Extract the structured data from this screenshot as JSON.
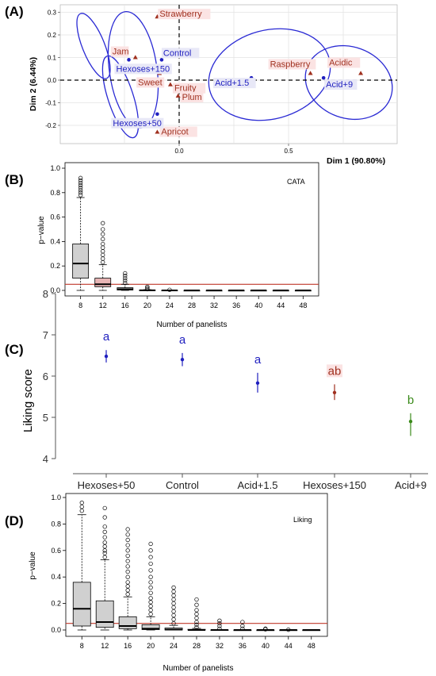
{
  "colors": {
    "variable_red": "#a0301f",
    "individual_blue": "#1f1fbf",
    "ellipse_blue": "#2a2ad4",
    "threshold_red": "#c0392b",
    "box_fill": "#d0d0d0",
    "box_fill_pink": "#e8b5b5",
    "green": "#3a8a1a"
  },
  "chart_data": [
    {
      "id": "A",
      "panel_label": "(A)",
      "type": "scatter",
      "xlabel": "Dim 1 (90.80%)",
      "ylabel": "Dim 2 (6.44%)",
      "xlim": [
        -0.27,
        0.88
      ],
      "ylim": [
        -0.27,
        0.3
      ],
      "xticks": [
        0.0,
        0.5
      ],
      "xtick_labels": [
        "0.0",
        "0.5"
      ],
      "yticks": [
        -0.2,
        -0.1,
        0.0,
        0.1,
        0.2,
        0.3
      ],
      "ytick_labels": [
        "-0.2",
        "-0.1",
        "0.0",
        "0.1",
        "0.2",
        "0.3"
      ],
      "grid": true,
      "variables": [
        {
          "label": "Strawberry",
          "x": -0.1,
          "y": 0.28
        },
        {
          "label": "Jam",
          "x": -0.2,
          "y": 0.1
        },
        {
          "label": "Sweet",
          "x": -0.09,
          "y": 0.03
        },
        {
          "label": "Fruity",
          "x": -0.04,
          "y": -0.02
        },
        {
          "label": "Plum",
          "x": -0.005,
          "y": -0.07
        },
        {
          "label": "Apricot",
          "x": -0.1,
          "y": -0.23
        },
        {
          "label": "Raspberry",
          "x": 0.6,
          "y": 0.03
        },
        {
          "label": "Acidic",
          "x": 0.83,
          "y": 0.03
        }
      ],
      "individuals": [
        {
          "label": "Control",
          "x": -0.08,
          "y": 0.09
        },
        {
          "label": "Hexoses+150",
          "x": -0.23,
          "y": 0.09
        },
        {
          "label": "Hexoses+50",
          "x": -0.1,
          "y": -0.15
        },
        {
          "label": "Acid+1.5",
          "x": 0.33,
          "y": 0.01
        },
        {
          "label": "Acid+9",
          "x": 0.66,
          "y": 0.01
        }
      ]
    },
    {
      "id": "B",
      "panel_label": "(B)",
      "type": "box",
      "corner_label": "CATA",
      "xlabel": "Number of panelists",
      "ylabel": "p−value",
      "categories": [
        "8",
        "12",
        "16",
        "20",
        "24",
        "28",
        "32",
        "36",
        "40",
        "44",
        "48"
      ],
      "ylim": [
        0,
        1
      ],
      "yticks": [
        0.0,
        0.2,
        0.4,
        0.6,
        0.8,
        1.0
      ],
      "ytick_labels": [
        "0.0",
        "0.2",
        "0.4",
        "0.6",
        "0.8",
        "1.0"
      ],
      "threshold": 0.05,
      "boxes": [
        {
          "q1": 0.1,
          "median": 0.22,
          "q3": 0.38,
          "whisker_low": 0.0,
          "whisker_high": 0.76,
          "outliers": [
            0.78,
            0.8,
            0.82,
            0.84,
            0.86,
            0.88,
            0.9,
            0.92
          ]
        },
        {
          "q1": 0.03,
          "median": 0.05,
          "q3": 0.1,
          "whisker_low": 0.0,
          "whisker_high": 0.21,
          "outliers": [
            0.23,
            0.26,
            0.29,
            0.32,
            0.35,
            0.38,
            0.42,
            0.46,
            0.5,
            0.55
          ]
        },
        {
          "q1": 0.003,
          "median": 0.01,
          "q3": 0.022,
          "whisker_low": 0.0,
          "whisker_high": 0.05,
          "outliers": [
            0.06,
            0.08,
            0.1,
            0.12,
            0.14
          ]
        },
        {
          "q1": 0.0,
          "median": 0.001,
          "q3": 0.003,
          "whisker_low": 0.0,
          "whisker_high": 0.006,
          "outliers": [
            0.01,
            0.02,
            0.03
          ]
        },
        {
          "q1": 0.0,
          "median": 0.0,
          "q3": 0.001,
          "whisker_low": 0.0,
          "whisker_high": 0.002,
          "outliers": [
            0.005
          ]
        },
        {
          "q1": 0.0,
          "median": 0.0,
          "q3": 0.0,
          "whisker_low": 0.0,
          "whisker_high": 0.001,
          "outliers": []
        },
        {
          "q1": 0.0,
          "median": 0.0,
          "q3": 0.0,
          "whisker_low": 0.0,
          "whisker_high": 0.0,
          "outliers": []
        },
        {
          "q1": 0.0,
          "median": 0.0,
          "q3": 0.0,
          "whisker_low": 0.0,
          "whisker_high": 0.0,
          "outliers": []
        },
        {
          "q1": 0.0,
          "median": 0.0,
          "q3": 0.0,
          "whisker_low": 0.0,
          "whisker_high": 0.0,
          "outliers": []
        },
        {
          "q1": 0.0,
          "median": 0.0,
          "q3": 0.0,
          "whisker_low": 0.0,
          "whisker_high": 0.0,
          "outliers": []
        },
        {
          "q1": 0.0,
          "median": 0.0,
          "q3": 0.0,
          "whisker_low": 0.0,
          "whisker_high": 0.0,
          "outliers": []
        }
      ]
    },
    {
      "id": "C",
      "panel_label": "(C)",
      "type": "scatter",
      "ylabel": "Liking score",
      "categories": [
        "Hexoses+50",
        "Control",
        "Acid+1.5",
        "Hexoses+150",
        "Acid+9"
      ],
      "ylim": [
        4,
        8
      ],
      "yticks": [
        4,
        5,
        6,
        7,
        8
      ],
      "ytick_labels": [
        "4",
        "5",
        "6",
        "7",
        "8"
      ],
      "points": [
        {
          "mean": 6.48,
          "low": 6.33,
          "high": 6.63,
          "letter": "a"
        },
        {
          "mean": 6.4,
          "low": 6.24,
          "high": 6.56,
          "letter": "a"
        },
        {
          "mean": 5.83,
          "low": 5.6,
          "high": 6.08,
          "letter": "a"
        },
        {
          "mean": 5.6,
          "low": 5.42,
          "high": 5.8,
          "letter": "ab"
        },
        {
          "mean": 4.9,
          "low": 4.55,
          "high": 5.1,
          "letter": "b"
        }
      ]
    },
    {
      "id": "D",
      "panel_label": "(D)",
      "type": "box",
      "corner_label": "Liking",
      "xlabel": "Number of panelists",
      "ylabel": "p−value",
      "categories": [
        "8",
        "12",
        "16",
        "20",
        "24",
        "28",
        "32",
        "36",
        "40",
        "44",
        "48"
      ],
      "ylim": [
        0,
        1
      ],
      "yticks": [
        0.0,
        0.2,
        0.4,
        0.6,
        0.8,
        1.0
      ],
      "ytick_labels": [
        "0.0",
        "0.2",
        "0.4",
        "0.6",
        "0.8",
        "1.0"
      ],
      "threshold": 0.05,
      "boxes": [
        {
          "q1": 0.03,
          "median": 0.16,
          "q3": 0.36,
          "whisker_low": 0.0,
          "whisker_high": 0.87,
          "outliers": [
            0.9,
            0.93,
            0.96
          ]
        },
        {
          "q1": 0.02,
          "median": 0.06,
          "q3": 0.22,
          "whisker_low": 0.0,
          "whisker_high": 0.53,
          "outliers": [
            0.55,
            0.58,
            0.6,
            0.63,
            0.66,
            0.7,
            0.74,
            0.78,
            0.85,
            0.92
          ]
        },
        {
          "q1": 0.01,
          "median": 0.03,
          "q3": 0.1,
          "whisker_low": 0.0,
          "whisker_high": 0.25,
          "outliers": [
            0.27,
            0.3,
            0.33,
            0.36,
            0.4,
            0.44,
            0.48,
            0.52,
            0.56,
            0.6,
            0.64,
            0.68,
            0.72,
            0.76
          ]
        },
        {
          "q1": 0.003,
          "median": 0.01,
          "q3": 0.04,
          "whisker_low": 0.0,
          "whisker_high": 0.1,
          "outliers": [
            0.12,
            0.15,
            0.18,
            0.21,
            0.24,
            0.28,
            0.32,
            0.36,
            0.4,
            0.45,
            0.5,
            0.55,
            0.6,
            0.65
          ]
        },
        {
          "q1": 0.0,
          "median": 0.003,
          "q3": 0.015,
          "whisker_low": 0.0,
          "whisker_high": 0.035,
          "outliers": [
            0.05,
            0.08,
            0.11,
            0.14,
            0.17,
            0.2,
            0.23,
            0.26,
            0.29,
            0.32
          ]
        },
        {
          "q1": 0.0,
          "median": 0.0,
          "q3": 0.005,
          "whisker_low": 0.0,
          "whisker_high": 0.012,
          "outliers": [
            0.02,
            0.04,
            0.06,
            0.09,
            0.12,
            0.15,
            0.19,
            0.23
          ]
        },
        {
          "q1": 0.0,
          "median": 0.0,
          "q3": 0.001,
          "whisker_low": 0.0,
          "whisker_high": 0.003,
          "outliers": [
            0.01,
            0.03,
            0.05,
            0.07
          ]
        },
        {
          "q1": 0.0,
          "median": 0.0,
          "q3": 0.0,
          "whisker_low": 0.0,
          "whisker_high": 0.001,
          "outliers": [
            0.01,
            0.03,
            0.06
          ]
        },
        {
          "q1": 0.0,
          "median": 0.0,
          "q3": 0.0,
          "whisker_low": 0.0,
          "whisker_high": 0.0,
          "outliers": [
            0.005,
            0.01
          ]
        },
        {
          "q1": 0.0,
          "median": 0.0,
          "q3": 0.0,
          "whisker_low": 0.0,
          "whisker_high": 0.0,
          "outliers": [
            0.002
          ]
        },
        {
          "q1": 0.0,
          "median": 0.0,
          "q3": 0.0,
          "whisker_low": 0.0,
          "whisker_high": 0.0,
          "outliers": []
        }
      ]
    }
  ]
}
